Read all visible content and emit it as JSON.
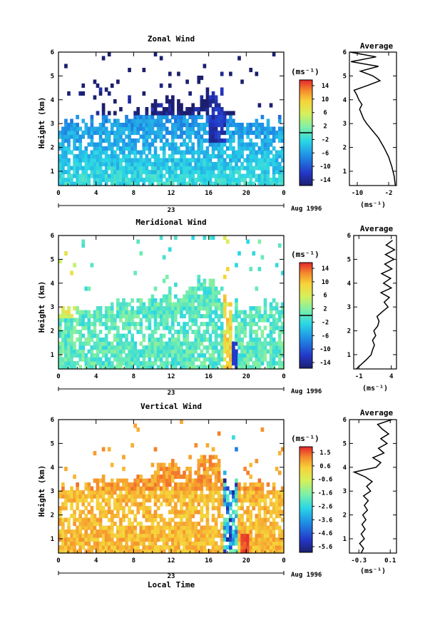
{
  "chart_data": [
    {
      "type": "heatmap",
      "title": "Zonal Wind",
      "ylabel": "Height (km)",
      "xlabel": "",
      "x_ticks": [
        "0",
        "4",
        "8",
        "12",
        "16",
        "20",
        "0"
      ],
      "y_ticks": [
        "1",
        "2",
        "3",
        "4",
        "5",
        "6"
      ],
      "xlim": [
        0,
        24
      ],
      "ylim": [
        0.4,
        6
      ],
      "date_day": "23",
      "date_month": "Aug 1996",
      "colorbar": {
        "unit": "(ms⁻¹)",
        "tick_labels": [
          "14",
          "10",
          "6",
          "2",
          "-2",
          "-6",
          "-10",
          "-14"
        ],
        "range": [
          -16,
          16
        ],
        "zero_line": 0
      },
      "profile": {
        "title": "Average",
        "unit": "(ms⁻¹)",
        "x_ticks": [
          "-10",
          "-2"
        ],
        "xlim": [
          -12,
          0
        ],
        "x_tick_values": [
          -10,
          -2
        ],
        "heights": [
          0.4,
          0.8,
          1.2,
          1.6,
          2.0,
          2.4,
          2.8,
          3.0,
          3.2,
          3.4,
          3.6,
          3.8,
          4.0,
          4.2,
          4.4,
          4.6,
          4.8,
          5.0,
          5.2,
          5.4,
          5.6,
          5.8,
          6.0
        ],
        "values": [
          -0.3,
          -0.6,
          -1.2,
          -2.0,
          -3.2,
          -4.6,
          -6.6,
          -7.6,
          -8.4,
          -8.9,
          -9.4,
          -8.8,
          -9.6,
          -10.1,
          -10.8,
          -7.4,
          -4.2,
          -6.0,
          -9.2,
          -4.6,
          -11.6,
          -5.2,
          -11.8
        ]
      },
      "sample_top": [
        3.0,
        3.1,
        3.0,
        2.9,
        3.2,
        3.4,
        3.3,
        3.1,
        3.5,
        3.6,
        3.9,
        3.7,
        4.3,
        3.8,
        3.6,
        3.9,
        4.4,
        4.1,
        3.4,
        3.2,
        3.1,
        3.0,
        3.1,
        2.9,
        2.9
      ]
    },
    {
      "type": "heatmap",
      "title": "Meridional Wind",
      "ylabel": "Height (km)",
      "xlabel": "",
      "x_ticks": [
        "0",
        "4",
        "8",
        "12",
        "16",
        "20",
        "0"
      ],
      "y_ticks": [
        "1",
        "2",
        "3",
        "4",
        "5",
        "6"
      ],
      "xlim": [
        0,
        24
      ],
      "ylim": [
        0.4,
        6
      ],
      "date_day": "23",
      "date_month": "Aug 1996",
      "colorbar": {
        "unit": "(ms⁻¹)",
        "tick_labels": [
          "14",
          "10",
          "6",
          "2",
          "-2",
          "-6",
          "-10",
          "-14"
        ],
        "range": [
          -16,
          16
        ],
        "zero_line": 0
      },
      "profile": {
        "title": "Average",
        "unit": "(ms⁻¹)",
        "x_ticks": [
          "-1",
          "4"
        ],
        "xlim": [
          -1.8,
          4.8
        ],
        "x_tick_values": [
          -1,
          4
        ],
        "heights": [
          0.4,
          0.6,
          0.8,
          1.0,
          1.2,
          1.4,
          1.6,
          1.8,
          2.0,
          2.2,
          2.4,
          2.6,
          2.8,
          3.0,
          3.2,
          3.4,
          3.6,
          3.8,
          4.0,
          4.2,
          4.4,
          4.6,
          4.8,
          5.0,
          5.2,
          5.4,
          5.6,
          5.8
        ],
        "values": [
          -1.4,
          -0.6,
          0.2,
          0.9,
          1.1,
          1.4,
          1.1,
          1.6,
          1.3,
          1.9,
          2.1,
          1.8,
          2.6,
          3.5,
          2.9,
          3.7,
          2.4,
          4.0,
          2.8,
          3.9,
          2.5,
          4.1,
          3.0,
          4.4,
          3.1,
          4.5,
          3.2,
          4.2
        ]
      },
      "sample_top": [
        3.0,
        3.1,
        2.9,
        2.8,
        2.9,
        3.0,
        3.1,
        3.2,
        3.1,
        3.2,
        3.4,
        3.3,
        3.7,
        3.4,
        3.8,
        4.1,
        4.0,
        3.8,
        3.2,
        3.1,
        2.9,
        3.0,
        3.2,
        3.1,
        3.0
      ]
    },
    {
      "type": "heatmap",
      "title": "Vertical Wind",
      "ylabel": "Height (km)",
      "xlabel": "Local Time",
      "x_ticks": [
        "0",
        "4",
        "8",
        "12",
        "16",
        "20",
        "0"
      ],
      "y_ticks": [
        "1",
        "2",
        "3",
        "4",
        "5",
        "6"
      ],
      "xlim": [
        0,
        24
      ],
      "ylim": [
        0.4,
        6
      ],
      "date_day": "23",
      "date_month": "Aug 1996",
      "colorbar": {
        "unit": "(ms⁻¹)",
        "tick_labels": [
          "1.5",
          "0.6",
          "-0.6",
          "-1.6",
          "-2.6",
          "-3.6",
          "-4.6",
          "-5.6"
        ],
        "range": [
          -6.1,
          2.0
        ],
        "zero_line": null
      },
      "profile": {
        "title": "Average",
        "unit": "(ms⁻¹)",
        "x_ticks": [
          "-0.3",
          "0.1"
        ],
        "xlim": [
          -0.42,
          0.18
        ],
        "x_tick_values": [
          -0.3,
          0.1
        ],
        "heights": [
          0.4,
          0.6,
          0.8,
          1.0,
          1.2,
          1.4,
          1.6,
          1.8,
          2.0,
          2.2,
          2.4,
          2.6,
          2.8,
          3.0,
          3.2,
          3.4,
          3.6,
          3.8,
          4.0,
          4.2,
          4.4,
          4.6,
          4.8,
          5.0,
          5.2,
          5.4,
          5.6,
          5.8,
          6.0
        ],
        "values": [
          -0.27,
          -0.24,
          -0.29,
          -0.23,
          -0.27,
          -0.22,
          -0.26,
          -0.21,
          -0.25,
          -0.19,
          -0.23,
          -0.18,
          -0.24,
          -0.15,
          -0.2,
          -0.13,
          -0.22,
          -0.36,
          -0.08,
          -0.02,
          -0.12,
          0.02,
          -0.05,
          0.06,
          -0.02,
          0.08,
          0.0,
          -0.06,
          0.12
        ]
      },
      "sample_top": [
        3.2,
        3.2,
        3.1,
        3.2,
        3.3,
        3.5,
        3.4,
        3.3,
        3.6,
        3.5,
        3.8,
        4.0,
        4.2,
        3.9,
        3.8,
        4.2,
        4.5,
        4.3,
        3.4,
        3.2,
        3.2,
        3.3,
        3.1,
        3.2,
        3.2
      ]
    }
  ]
}
